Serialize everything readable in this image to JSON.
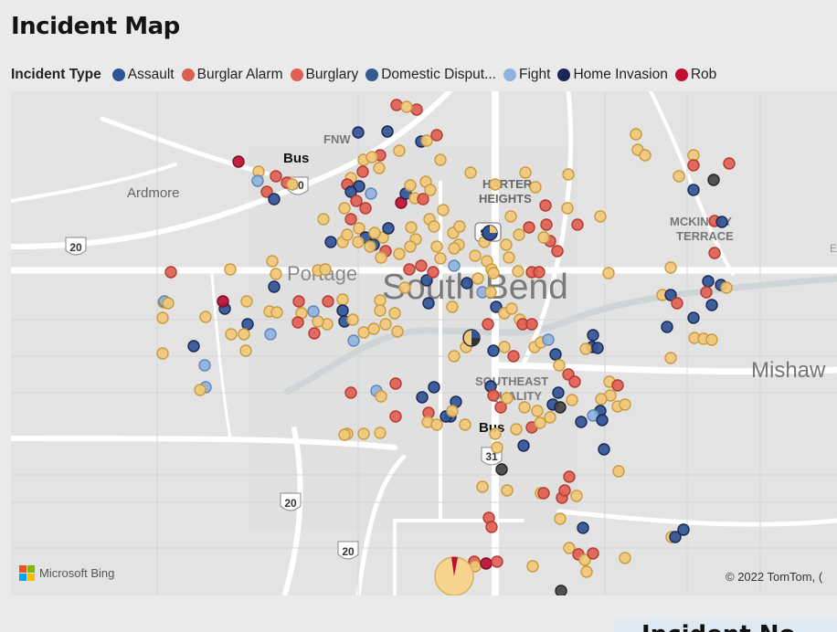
{
  "title": "Incident Map",
  "legend": {
    "heading": "Incident Type",
    "items": [
      {
        "label": "Assault",
        "color": "#2f5597"
      },
      {
        "label": "Burglar Alarm",
        "color": "#d9604f"
      },
      {
        "label": "Burglary",
        "color": "#df5f52"
      },
      {
        "label": "Domestic Disput...",
        "color": "#345a92"
      },
      {
        "label": "Fight",
        "color": "#8fb2de"
      },
      {
        "label": "Home Invasion",
        "color": "#1c2555"
      },
      {
        "label": "Rob",
        "color": "#bf0f34"
      }
    ]
  },
  "map": {
    "places": {
      "fnw": "FNW",
      "bus_north": "Bus",
      "ardmore": "Ardmore",
      "harter": "HARTER",
      "heights": "HEIGHTS",
      "mckinley": "MCKINLEY",
      "terrace": "TERRACE",
      "portage": "Portage",
      "south_bend": "South Bend",
      "southeast": "SOUTHEAST",
      "quality": "QUALITY",
      "bus_south": "Bus",
      "mishawaka": "Mishaw",
      "edge_e": "E"
    },
    "shields": {
      "s20_north": "20",
      "s20_west": "20",
      "s20_south": "20",
      "s20_bottom": "20",
      "s31": "31",
      "s933": "933"
    },
    "attribution": "Microsoft Bing",
    "copyright": "© 2022 TomTom, ("
  },
  "colors": {
    "gold": "#f2c879",
    "red": "#df5f52",
    "navy": "#2f5597",
    "light_blue": "#8fb2de",
    "dark_navy": "#1c2555",
    "crimson": "#bf0f34",
    "dark": "#444444"
  },
  "bottom_card": {
    "title": "Incident No"
  }
}
